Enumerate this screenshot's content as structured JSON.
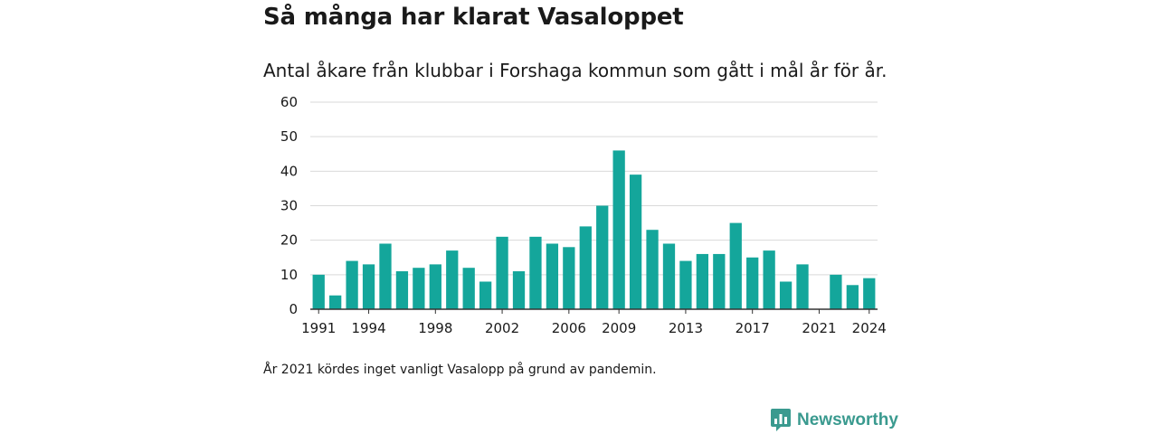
{
  "title": "Så många har klarat Vasaloppet",
  "subtitle": "Antal åkare från klubbar i Forshaga kommun som gått i mål år för år.",
  "note": "År 2021 kördes inget vanligt Vasalopp på grund av pandemin.",
  "brand": {
    "name": "Newsworthy",
    "color": "#3a9a8f",
    "icon": "newsworthy-logo-icon"
  },
  "colors": {
    "bar": "#14a69b",
    "grid": "#d9d9d9",
    "axis": "#333333"
  },
  "chart_data": {
    "type": "bar",
    "title": "Så många har klarat Vasaloppet",
    "subtitle": "Antal åkare från klubbar i Forshaga kommun som gått i mål år för år.",
    "x": [
      1991,
      1992,
      1993,
      1994,
      1995,
      1996,
      1997,
      1998,
      1999,
      2000,
      2001,
      2002,
      2003,
      2004,
      2005,
      2006,
      2007,
      2008,
      2009,
      2010,
      2011,
      2012,
      2013,
      2014,
      2015,
      2016,
      2017,
      2018,
      2019,
      2020,
      2021,
      2022,
      2023,
      2024
    ],
    "values": [
      10,
      4,
      14,
      13,
      19,
      11,
      12,
      13,
      17,
      12,
      8,
      21,
      11,
      21,
      19,
      18,
      24,
      30,
      46,
      39,
      23,
      19,
      14,
      16,
      16,
      25,
      15,
      17,
      8,
      13,
      0,
      10,
      7,
      9
    ],
    "x_tick_labels": [
      "1991",
      "1994",
      "1998",
      "2002",
      "2006",
      "2009",
      "2013",
      "2017",
      "2021",
      "2024"
    ],
    "y_ticks": [
      0,
      10,
      20,
      30,
      40,
      50,
      60
    ],
    "ylim": [
      0,
      60
    ],
    "grid": true,
    "legend": "none"
  }
}
